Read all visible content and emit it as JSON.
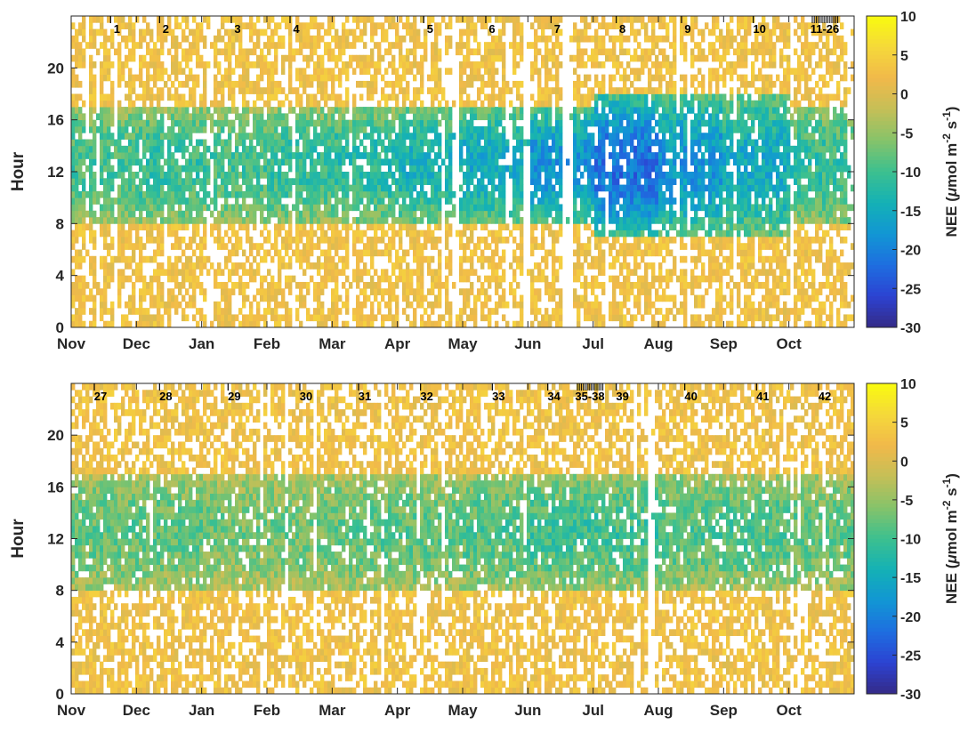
{
  "colormap": {
    "name": "parula",
    "stops": [
      "#352a87",
      "#2c43d2",
      "#1e6ee0",
      "#1296d4",
      "#14b1b5",
      "#3cc08f",
      "#86c36a",
      "#c5bf57",
      "#f1b94a",
      "#f5d93a",
      "#f9fb0e"
    ]
  },
  "chart_data": [
    {
      "type": "heatmap",
      "panel": "top",
      "ylabel": "Hour",
      "ylim": [
        0,
        24
      ],
      "yticks": [
        "0",
        "4",
        "8",
        "12",
        "16",
        "20"
      ],
      "xticks": [
        "Nov",
        "Dec",
        "Jan",
        "Feb",
        "Mar",
        "Apr",
        "May",
        "Jun",
        "Jul",
        "Aug",
        "Sep",
        "Oct"
      ],
      "colorbar": {
        "label": "NEE (μmol m⁻² s⁻¹)",
        "label_main": "NEE (",
        "label_mu": "μ",
        "label_unit": "mol m",
        "label_sup1": "-2",
        "label_unit2": " s",
        "label_sup2": "-1",
        "label_close": ")",
        "range": [
          -30,
          10
        ],
        "ticks": [
          "10",
          "5",
          "0",
          "-5",
          "-10",
          "-15",
          "-20",
          "-25",
          "-30"
        ]
      },
      "event_labels": [
        {
          "text": "1",
          "month": 0.7
        },
        {
          "text": "2",
          "month": 1.45
        },
        {
          "text": "3",
          "month": 2.55
        },
        {
          "text": "4",
          "month": 3.45
        },
        {
          "text": "5",
          "month": 5.5
        },
        {
          "text": "6",
          "month": 6.45
        },
        {
          "text": "7",
          "month": 7.45
        },
        {
          "text": "8",
          "month": 8.45
        },
        {
          "text": "9",
          "month": 9.45
        },
        {
          "text": "10",
          "month": 10.55
        },
        {
          "text": "11-26",
          "month": 11.55
        }
      ],
      "night_nee": 2.5,
      "day_profile": [
        {
          "month": 0,
          "start": 8,
          "end": 17,
          "peak": -10
        },
        {
          "month": 1,
          "start": 8,
          "end": 17,
          "peak": -11
        },
        {
          "month": 2,
          "start": 8,
          "end": 17,
          "peak": -10
        },
        {
          "month": 3,
          "start": 8,
          "end": 17,
          "peak": -11
        },
        {
          "month": 4,
          "start": 8,
          "end": 17,
          "peak": -12
        },
        {
          "month": 5,
          "start": 8,
          "end": 17,
          "peak": -14
        },
        {
          "month": 6,
          "start": 8,
          "end": 17,
          "peak": -15
        },
        {
          "month": 7,
          "start": 8,
          "end": 17,
          "peak": -18
        },
        {
          "month": 8,
          "start": 7,
          "end": 18,
          "peak": -22
        },
        {
          "month": 9,
          "start": 7,
          "end": 18,
          "peak": -18
        },
        {
          "month": 10,
          "start": 7,
          "end": 18,
          "peak": -15
        },
        {
          "month": 11,
          "start": 8,
          "end": 17,
          "peak": -11
        }
      ],
      "gaps": [
        [
          5.85,
          5.95
        ],
        [
          6.95,
          7.05
        ],
        [
          7.55,
          7.7
        ]
      ]
    },
    {
      "type": "heatmap",
      "panel": "bottom",
      "ylabel": "Hour",
      "ylim": [
        0,
        24
      ],
      "yticks": [
        "0",
        "4",
        "8",
        "12",
        "16",
        "20"
      ],
      "xticks": [
        "Nov",
        "Dec",
        "Jan",
        "Feb",
        "Mar",
        "Apr",
        "May",
        "Jun",
        "Jul",
        "Aug",
        "Sep",
        "Oct"
      ],
      "colorbar": {
        "label": "NEE (μmol m⁻² s⁻¹)",
        "label_main": "NEE (",
        "label_mu": "μ",
        "label_unit": "mol m",
        "label_sup1": "-2",
        "label_unit2": " s",
        "label_sup2": "-1",
        "label_close": ")",
        "range": [
          -30,
          10
        ],
        "ticks": [
          "10",
          "5",
          "0",
          "-5",
          "-10",
          "-15",
          "-20",
          "-25",
          "-30"
        ]
      },
      "event_labels": [
        {
          "text": "27",
          "month": 0.45
        },
        {
          "text": "28",
          "month": 1.45
        },
        {
          "text": "29",
          "month": 2.5
        },
        {
          "text": "30",
          "month": 3.6
        },
        {
          "text": "31",
          "month": 4.5
        },
        {
          "text": "32",
          "month": 5.45
        },
        {
          "text": "33",
          "month": 6.55
        },
        {
          "text": "34",
          "month": 7.4
        },
        {
          "text": "35-38",
          "month": 7.95
        },
        {
          "text": "39",
          "month": 8.45
        },
        {
          "text": "40",
          "month": 9.5
        },
        {
          "text": "41",
          "month": 10.6
        },
        {
          "text": "42",
          "month": 11.55
        }
      ],
      "night_nee": 2.5,
      "day_profile": [
        {
          "month": 0,
          "start": 8,
          "end": 17,
          "peak": -8
        },
        {
          "month": 1,
          "start": 8,
          "end": 17,
          "peak": -8
        },
        {
          "month": 2,
          "start": 8,
          "end": 17,
          "peak": -7
        },
        {
          "month": 3,
          "start": 8,
          "end": 17,
          "peak": -7
        },
        {
          "month": 4,
          "start": 8,
          "end": 17,
          "peak": -8
        },
        {
          "month": 5,
          "start": 8,
          "end": 17,
          "peak": -8
        },
        {
          "month": 6,
          "start": 8,
          "end": 17,
          "peak": -9
        },
        {
          "month": 7,
          "start": 8,
          "end": 17,
          "peak": -10
        },
        {
          "month": 8,
          "start": 8,
          "end": 17,
          "peak": -10
        },
        {
          "month": 9,
          "start": 8,
          "end": 17,
          "peak": -9
        },
        {
          "month": 10,
          "start": 8,
          "end": 17,
          "peak": -9
        },
        {
          "month": 11,
          "start": 8,
          "end": 17,
          "peak": -8
        }
      ],
      "gaps": [
        [
          8.85,
          8.95
        ]
      ]
    }
  ]
}
